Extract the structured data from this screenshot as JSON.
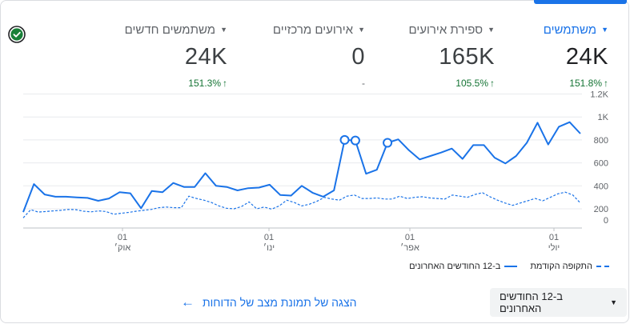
{
  "metrics": [
    {
      "label": "משתמשים",
      "value": "24K",
      "change": "151.8%",
      "arrow": "↑",
      "active": true
    },
    {
      "label": "ספירת אירועים",
      "value": "165K",
      "change": "105.5%",
      "arrow": "↑",
      "active": false
    },
    {
      "label": "אירועים מרכזיים",
      "value": "0",
      "change": "-",
      "arrow": "",
      "active": false
    },
    {
      "label": "משתמשים חדשים",
      "value": "24K",
      "change": "151.3%",
      "arrow": "↑",
      "active": false
    }
  ],
  "chart_data": {
    "type": "line",
    "ylim": [
      0,
      1200
    ],
    "y_ticks": [
      {
        "value": 0,
        "label": "0"
      },
      {
        "value": 200,
        "label": "200"
      },
      {
        "value": 400,
        "label": "400"
      },
      {
        "value": 600,
        "label": "600"
      },
      {
        "value": 800,
        "label": "800"
      },
      {
        "value": 1000,
        "label": "1K"
      },
      {
        "value": 1200,
        "label": "1.2K"
      }
    ],
    "x_ticks": [
      {
        "line1": "01",
        "line2": "אוק׳"
      },
      {
        "line1": "01",
        "line2": "ינו׳"
      },
      {
        "line1": "01",
        "line2": "אפר׳"
      },
      {
        "line1": "01",
        "line2": "יולי"
      }
    ],
    "series": [
      {
        "name": "ב-12 החודשים האחרונים",
        "style": "solid",
        "color": "#1a73e8",
        "values": [
          145,
          415,
          325,
          305,
          305,
          300,
          295,
          270,
          290,
          345,
          335,
          205,
          355,
          345,
          425,
          390,
          390,
          510,
          400,
          390,
          360,
          380,
          385,
          410,
          320,
          315,
          400,
          340,
          305,
          360,
          800,
          795,
          505,
          540,
          775,
          805,
          710,
          630,
          660,
          690,
          725,
          635,
          755,
          755,
          645,
          595,
          660,
          775,
          950,
          760,
          915,
          955,
          855
        ],
        "markers": [
          30,
          31,
          34
        ]
      },
      {
        "name": "התקופה הקודמת",
        "style": "dashed",
        "color": "#1a73e8",
        "values": [
          50,
          185,
          145,
          155,
          165,
          175,
          190,
          185,
          160,
          150,
          165,
          155,
          110,
          125,
          140,
          160,
          175,
          190,
          210,
          215,
          210,
          210,
          310,
          290,
          275,
          255,
          225,
          205,
          200,
          220,
          260,
          200,
          215,
          195,
          225,
          275,
          255,
          225,
          240,
          265,
          300,
          285,
          275,
          310,
          320,
          290,
          290,
          295,
          285,
          285,
          310,
          290,
          300,
          305,
          295,
          290,
          285,
          320,
          310,
          300,
          325,
          340,
          305,
          275,
          250,
          230,
          250,
          270,
          290,
          270,
          300,
          330,
          345,
          320,
          250
        ]
      }
    ]
  },
  "legend": {
    "current": "ב-12 החודשים האחרונים",
    "previous": "התקופה הקודמת"
  },
  "footer": {
    "link_label": "הצגה של תמונת מצב של הדוחות",
    "range_label": "ב-12 החודשים האחרונים"
  }
}
